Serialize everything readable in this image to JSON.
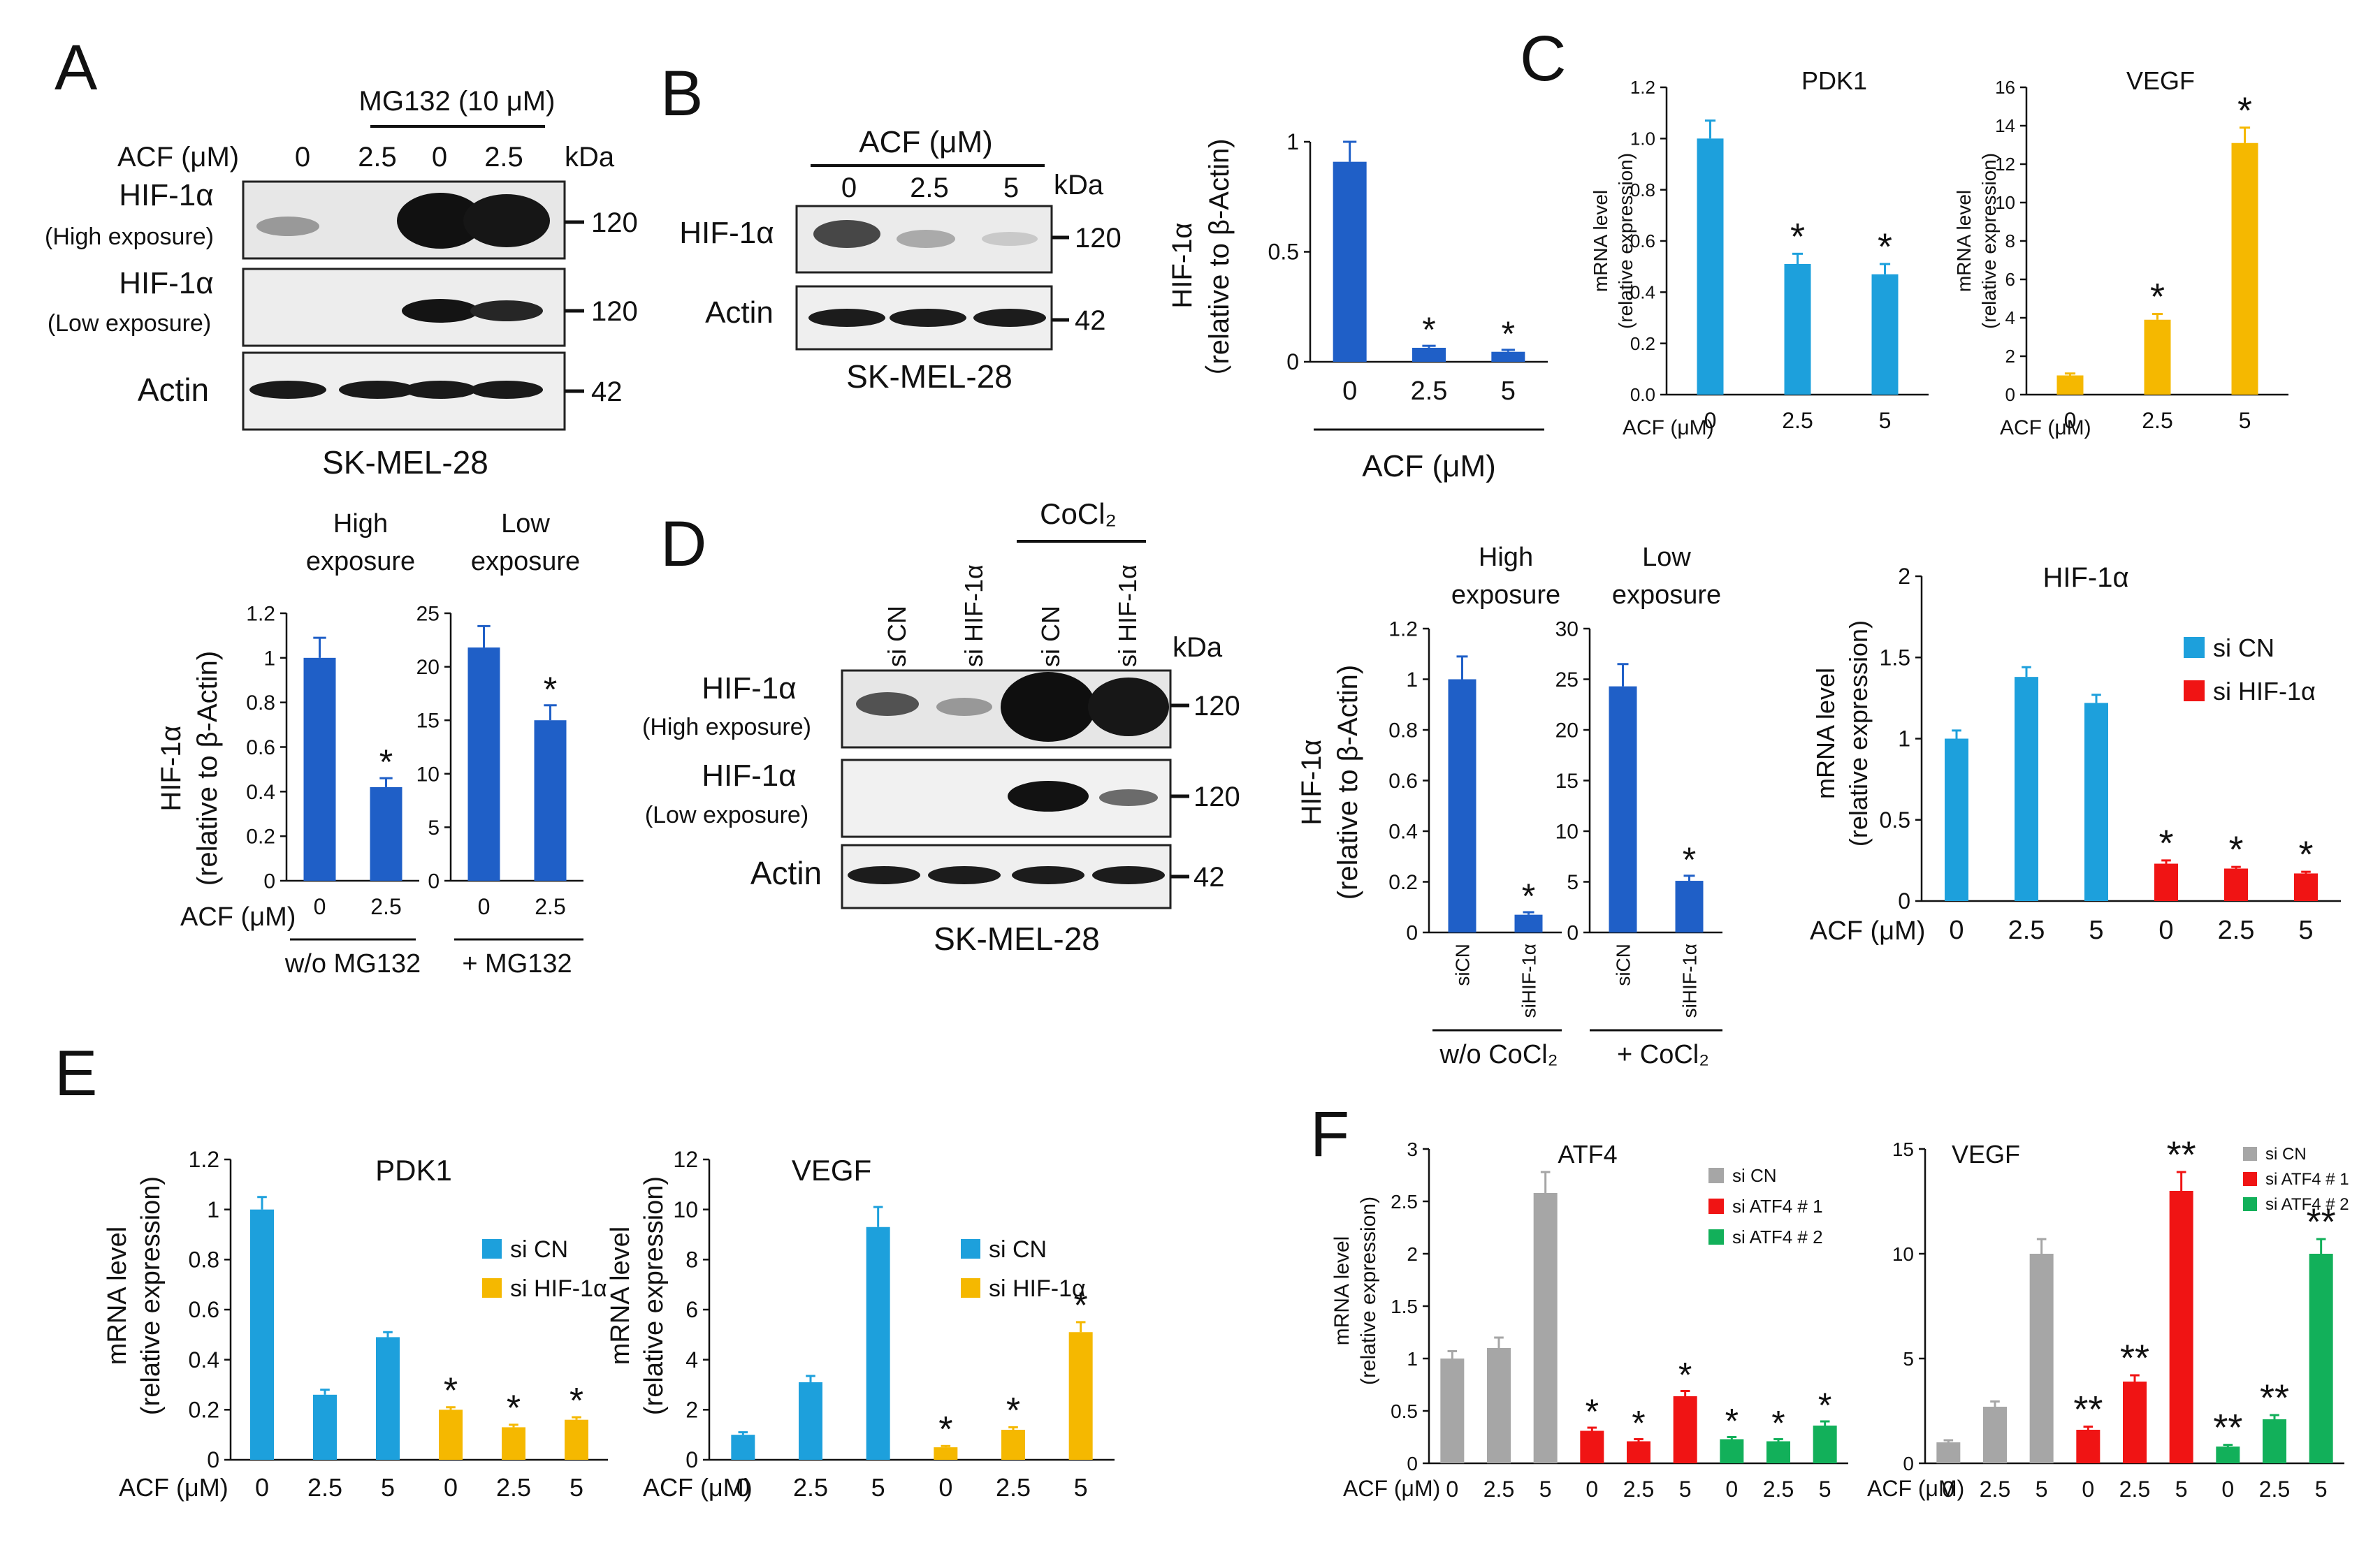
{
  "panels": {
    "A": {
      "letter": "A",
      "blot": {
        "mg132_label": "MG132 (10 μM)",
        "acf_label": "ACF (μM)",
        "lanes": [
          "0",
          "2.5",
          "0",
          "2.5"
        ],
        "kda": "kDa",
        "rows": [
          {
            "name": "HIF-1α",
            "sub": "(High exposure)",
            "mw": "120"
          },
          {
            "name": "HIF-1α",
            "sub": "(Low exposure)",
            "mw": "120"
          },
          {
            "name": "Actin",
            "sub": "",
            "mw": "42"
          }
        ],
        "cell_line": "SK-MEL-28"
      },
      "chart_high": {
        "type": "bar",
        "header": [
          "High",
          "exposure"
        ],
        "ylabel": [
          "HIF-1α",
          "(relative to β-Actin)"
        ],
        "ylim": [
          0,
          1.2
        ],
        "yticks": [
          "0",
          "0.2",
          "0.4",
          "0.6",
          "0.8",
          "1",
          "1.2"
        ],
        "categories": [
          "0",
          "2.5"
        ],
        "values": [
          1.0,
          0.42
        ],
        "errors": [
          0.09,
          0.04
        ],
        "stars": [
          "",
          "*"
        ],
        "colors": [
          "#1f5fc7",
          "#1f5fc7"
        ]
      },
      "chart_low": {
        "type": "bar",
        "header": [
          "Low",
          "exposure"
        ],
        "ylim": [
          0,
          25
        ],
        "yticks": [
          "0",
          "5",
          "10",
          "15",
          "20",
          "25"
        ],
        "categories": [
          "0",
          "2.5"
        ],
        "values": [
          21.8,
          15.0
        ],
        "errors": [
          2.0,
          1.4
        ],
        "stars": [
          "",
          "*"
        ],
        "colors": [
          "#1f5fc7",
          "#1f5fc7"
        ]
      },
      "x_prefix": "ACF (μM)",
      "group_labels": [
        "w/o MG132",
        "+ MG132"
      ]
    },
    "B": {
      "letter": "B",
      "blot": {
        "acf_label": "ACF (μM)",
        "lanes": [
          "0",
          "2.5",
          "5"
        ],
        "kda": "kDa",
        "rows": [
          {
            "name": "HIF-1α",
            "mw": "120"
          },
          {
            "name": "Actin",
            "mw": "42"
          }
        ],
        "cell_line": "SK-MEL-28"
      },
      "chart": {
        "type": "bar",
        "ylabel": [
          "HIF-1α",
          "（relative to β-Actin)"
        ],
        "ylim": [
          0,
          1.1
        ],
        "yticks": [
          "0",
          "0.5",
          "1"
        ],
        "categories": [
          "0",
          "2.5",
          "5"
        ],
        "values": [
          1.0,
          0.07,
          0.05
        ],
        "errors": [
          0.1,
          0.01,
          0.01
        ],
        "stars": [
          "",
          "*",
          "*"
        ],
        "xlabel": "ACF (μM)",
        "colors": [
          "#1f5fc7",
          "#1f5fc7",
          "#1f5fc7"
        ]
      }
    },
    "C": {
      "letter": "C",
      "chart_pdk1": {
        "type": "bar",
        "title": "PDK1",
        "ylabel": [
          "mRNA level",
          "(relative expression)"
        ],
        "ylim": [
          0,
          1.2
        ],
        "yticks": [
          "0.0",
          "0.2",
          "0.4",
          "0.6",
          "0.8",
          "1.0",
          "1.2"
        ],
        "x_prefix": "ACF (μM)",
        "categories": [
          "0",
          "2.5",
          "5"
        ],
        "values": [
          1.0,
          0.51,
          0.47
        ],
        "errors": [
          0.07,
          0.04,
          0.04
        ],
        "stars": [
          "",
          "*",
          "*"
        ],
        "colors": [
          "#1da0dc",
          "#1da0dc",
          "#1da0dc"
        ]
      },
      "chart_vegf": {
        "type": "bar",
        "title": "VEGF",
        "ylabel": [
          "mRNA level",
          "(relative expression)"
        ],
        "ylim": [
          0,
          16
        ],
        "yticks": [
          "0",
          "2",
          "4",
          "6",
          "8",
          "10",
          "12",
          "14",
          "16"
        ],
        "x_prefix": "ACF (μM)",
        "categories": [
          "0",
          "2.5",
          "5"
        ],
        "values": [
          1.0,
          3.9,
          13.1
        ],
        "errors": [
          0.1,
          0.3,
          0.8
        ],
        "stars": [
          "",
          "*",
          "*"
        ],
        "colors": [
          "#f5b800",
          "#f5b800",
          "#f5b800"
        ]
      }
    },
    "D": {
      "letter": "D",
      "blot": {
        "cocl2_label": "CoCl₂",
        "lanes": [
          "si CN",
          "si HIF-1α",
          "si CN",
          "si HIF-1α"
        ],
        "kda": "kDa",
        "rows": [
          {
            "name": "HIF-1α",
            "sub": "(High exposure)",
            "mw": "120"
          },
          {
            "name": "HIF-1α",
            "sub": "(Low exposure)",
            "mw": "120"
          },
          {
            "name": "Actin",
            "sub": "",
            "mw": "42"
          }
        ],
        "cell_line": "SK-MEL-28"
      },
      "chart_high": {
        "type": "bar",
        "header": [
          "High",
          "exposure"
        ],
        "ylabel": [
          "HIF-1α",
          "(relative to β-Actin)"
        ],
        "ylim": [
          0,
          1.2
        ],
        "yticks": [
          "0",
          "0.2",
          "0.4",
          "0.6",
          "0.8",
          "1",
          "1.2"
        ],
        "categories": [
          "siCN",
          "siHIF-1α"
        ],
        "values": [
          1.0,
          0.07
        ],
        "errors": [
          0.09,
          0.01
        ],
        "stars": [
          "",
          "*"
        ],
        "colors": [
          "#1f5fc7",
          "#1f5fc7"
        ]
      },
      "chart_low": {
        "type": "bar",
        "header": [
          "Low",
          "exposure"
        ],
        "ylim": [
          0,
          30
        ],
        "yticks": [
          "0",
          "5",
          "10",
          "15",
          "20",
          "25",
          "30"
        ],
        "categories": [
          "siCN",
          "siHIF-1α"
        ],
        "values": [
          24.3,
          5.1
        ],
        "errors": [
          2.2,
          0.5
        ],
        "stars": [
          "",
          "*"
        ],
        "colors": [
          "#1f5fc7",
          "#1f5fc7"
        ]
      },
      "group_labels": [
        "w/o  CoCl₂",
        "+ CoCl₂"
      ],
      "chart_mrna": {
        "type": "bar",
        "title": "HIF-1α",
        "ylabel": [
          "mRNA level",
          "(relative expression)"
        ],
        "ylim": [
          0,
          2
        ],
        "yticks": [
          "0",
          "0.5",
          "1",
          "1.5",
          "2"
        ],
        "x_prefix": "ACF (μM)",
        "categories": [
          "0",
          "2.5",
          "5",
          "0",
          "2.5",
          "5"
        ],
        "values": [
          1.0,
          1.38,
          1.22,
          0.23,
          0.2,
          0.17
        ],
        "errors": [
          0.05,
          0.06,
          0.05,
          0.02,
          0.01,
          0.01
        ],
        "stars": [
          "",
          "",
          "",
          "*",
          "*",
          "*"
        ],
        "colors": [
          "#1da0dc",
          "#1da0dc",
          "#1da0dc",
          "#f01414",
          "#f01414",
          "#f01414"
        ],
        "legend": [
          {
            "name": "si CN",
            "color": "#1da0dc"
          },
          {
            "name": "si HIF-1α",
            "color": "#f01414"
          }
        ]
      }
    },
    "E": {
      "letter": "E",
      "chart_pdk1": {
        "type": "bar",
        "title": "PDK1",
        "ylabel": [
          "mRNA level",
          "(relative expression)"
        ],
        "ylim": [
          0,
          1.2
        ],
        "yticks": [
          "0",
          "0.2",
          "0.4",
          "0.6",
          "0.8",
          "1",
          "1.2"
        ],
        "x_prefix": "ACF (μM)",
        "categories": [
          "0",
          "2.5",
          "5",
          "0",
          "2.5",
          "5"
        ],
        "values": [
          1.0,
          0.26,
          0.49,
          0.2,
          0.13,
          0.16
        ],
        "errors": [
          0.05,
          0.02,
          0.02,
          0.01,
          0.01,
          0.01
        ],
        "stars": [
          "",
          "",
          "",
          "*",
          "*",
          "*"
        ],
        "colors": [
          "#1da0dc",
          "#1da0dc",
          "#1da0dc",
          "#f5b800",
          "#f5b800",
          "#f5b800"
        ],
        "legend": [
          {
            "name": "si CN",
            "color": "#1da0dc"
          },
          {
            "name": "si HIF-1α",
            "color": "#f5b800"
          }
        ]
      },
      "chart_vegf": {
        "type": "bar",
        "title": "VEGF",
        "ylabel": [
          "mRNA level",
          "(relative expression)"
        ],
        "ylim": [
          0,
          12
        ],
        "yticks": [
          "0",
          "2",
          "4",
          "6",
          "8",
          "10",
          "12"
        ],
        "x_prefix": "ACF (μM)",
        "categories": [
          "0",
          "2.5",
          "5",
          "0",
          "2.5",
          "5"
        ],
        "values": [
          1.0,
          3.1,
          9.3,
          0.5,
          1.2,
          5.1
        ],
        "errors": [
          0.1,
          0.25,
          0.8,
          0.05,
          0.1,
          0.4
        ],
        "stars": [
          "",
          "",
          "",
          "*",
          "*",
          "*"
        ],
        "colors": [
          "#1da0dc",
          "#1da0dc",
          "#1da0dc",
          "#f5b800",
          "#f5b800",
          "#f5b800"
        ],
        "legend": [
          {
            "name": "si CN",
            "color": "#1da0dc"
          },
          {
            "name": "si HIF-1α",
            "color": "#f5b800"
          }
        ]
      }
    },
    "F": {
      "letter": "F",
      "chart_atf4": {
        "type": "bar",
        "title": "ATF4",
        "ylabel": [
          "mRNA level",
          "(relative expression)"
        ],
        "ylim": [
          0,
          3
        ],
        "yticks": [
          "0",
          "0.5",
          "1",
          "1.5",
          "2",
          "2.5",
          "3"
        ],
        "x_prefix": "ACF (μM)",
        "categories": [
          "0",
          "2.5",
          "5",
          "0",
          "2.5",
          "5",
          "0",
          "2.5",
          "5"
        ],
        "values": [
          1.0,
          1.1,
          2.58,
          0.31,
          0.21,
          0.64,
          0.23,
          0.21,
          0.36
        ],
        "errors": [
          0.07,
          0.1,
          0.2,
          0.03,
          0.02,
          0.05,
          0.02,
          0.02,
          0.04
        ],
        "stars": [
          "",
          "",
          "",
          "*",
          "*",
          "*",
          "*",
          "*",
          "*"
        ],
        "colors": [
          "#a6a6a6",
          "#a6a6a6",
          "#a6a6a6",
          "#f01414",
          "#f01414",
          "#f01414",
          "#12b05a",
          "#12b05a",
          "#12b05a"
        ],
        "legend": [
          {
            "name": "si CN",
            "color": "#a6a6a6"
          },
          {
            "name": "si ATF4 # 1",
            "color": "#f01414"
          },
          {
            "name": "si ATF4 # 2",
            "color": "#12b05a"
          }
        ]
      },
      "chart_vegf": {
        "type": "bar",
        "title": "VEGF",
        "ylim": [
          0,
          15
        ],
        "yticks": [
          "0",
          "5",
          "10",
          "15"
        ],
        "x_prefix": "ACF (μM)",
        "categories": [
          "0",
          "2.5",
          "5",
          "0",
          "2.5",
          "5",
          "0",
          "2.5",
          "5"
        ],
        "values": [
          1.0,
          2.7,
          10.0,
          1.6,
          3.9,
          13.0,
          0.8,
          2.1,
          10.0
        ],
        "errors": [
          0.1,
          0.25,
          0.7,
          0.15,
          0.3,
          0.9,
          0.08,
          0.2,
          0.7
        ],
        "stars": [
          "",
          "",
          "",
          "**",
          "**",
          "**",
          "**",
          "**",
          "**"
        ],
        "colors": [
          "#a6a6a6",
          "#a6a6a6",
          "#a6a6a6",
          "#f01414",
          "#f01414",
          "#f01414",
          "#12b05a",
          "#12b05a",
          "#12b05a"
        ],
        "legend": [
          {
            "name": "si CN",
            "color": "#a6a6a6"
          },
          {
            "name": "si ATF4 # 1",
            "color": "#f01414"
          },
          {
            "name": "si ATF4 # 2",
            "color": "#12b05a"
          }
        ]
      }
    }
  }
}
